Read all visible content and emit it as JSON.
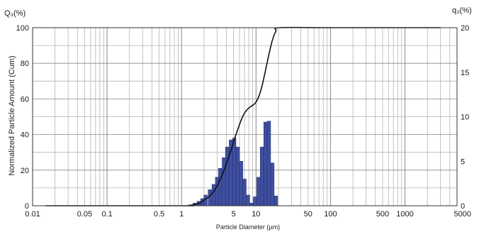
{
  "chart_data": {
    "type": "bar",
    "xlabel": "Particle Diameter (µm)",
    "ylabel": "Normalized Particle Amount (Cum)",
    "y_unit_left": "Q₃(%)",
    "y_unit_right": "q₃(%)",
    "x_scale": "log",
    "xlim": [
      0.01,
      5000
    ],
    "ylim_left": [
      0,
      100
    ],
    "ylim_right": [
      0,
      20
    ],
    "grid": true,
    "x_ticks": [
      "0.01",
      "0.05",
      "0.1",
      "0.5",
      "1",
      "5",
      "10",
      "50",
      "100",
      "500",
      "1000",
      "5000"
    ],
    "x_tick_values": [
      0.01,
      0.05,
      0.1,
      0.5,
      1,
      5,
      10,
      50,
      100,
      500,
      1000,
      5000
    ],
    "y_ticks_left": [
      "0",
      "20",
      "40",
      "60",
      "80",
      "100"
    ],
    "y_ticks_right": [
      "0",
      "5",
      "10",
      "15",
      "20"
    ],
    "series": [
      {
        "kind": "bar",
        "axis": "right",
        "color": "#3f4fa0",
        "x": [
          1.3,
          1.5,
          1.7,
          1.9,
          2.1,
          2.4,
          2.7,
          3.0,
          3.3,
          3.7,
          4.1,
          4.6,
          5.1,
          5.7,
          6.3,
          7.0,
          7.8,
          8.7,
          9.7,
          10.8,
          12.0,
          13.4,
          14.9,
          16.6,
          18.5
        ],
        "values": [
          0.1,
          0.3,
          0.5,
          0.8,
          1.2,
          1.8,
          2.4,
          3.2,
          4.2,
          5.4,
          6.6,
          7.4,
          7.6,
          6.6,
          5.0,
          3.0,
          1.2,
          0.3,
          1.0,
          3.2,
          6.6,
          9.4,
          9.5,
          4.8,
          1.1
        ]
      },
      {
        "kind": "line",
        "axis": "left",
        "color": "#111111",
        "x": [
          0.015,
          1.0,
          1.3,
          1.5,
          1.7,
          1.9,
          2.1,
          2.4,
          2.7,
          3.0,
          3.3,
          3.7,
          4.1,
          4.6,
          5.1,
          5.7,
          6.3,
          7.0,
          7.8,
          8.7,
          9.7,
          10.8,
          12.0,
          13.4,
          14.9,
          16.6,
          18.5,
          21.0,
          100,
          3000
        ],
        "values": [
          0,
          0,
          0.3,
          0.6,
          1.3,
          2.3,
          3.7,
          5.5,
          8.0,
          11.0,
          14.8,
          19.5,
          25.0,
          31.0,
          37.0,
          43.0,
          48.0,
          52.0,
          54.5,
          56.0,
          57.5,
          61.0,
          67.0,
          76.0,
          85.0,
          93.0,
          98.0,
          100,
          100,
          100
        ]
      }
    ]
  }
}
